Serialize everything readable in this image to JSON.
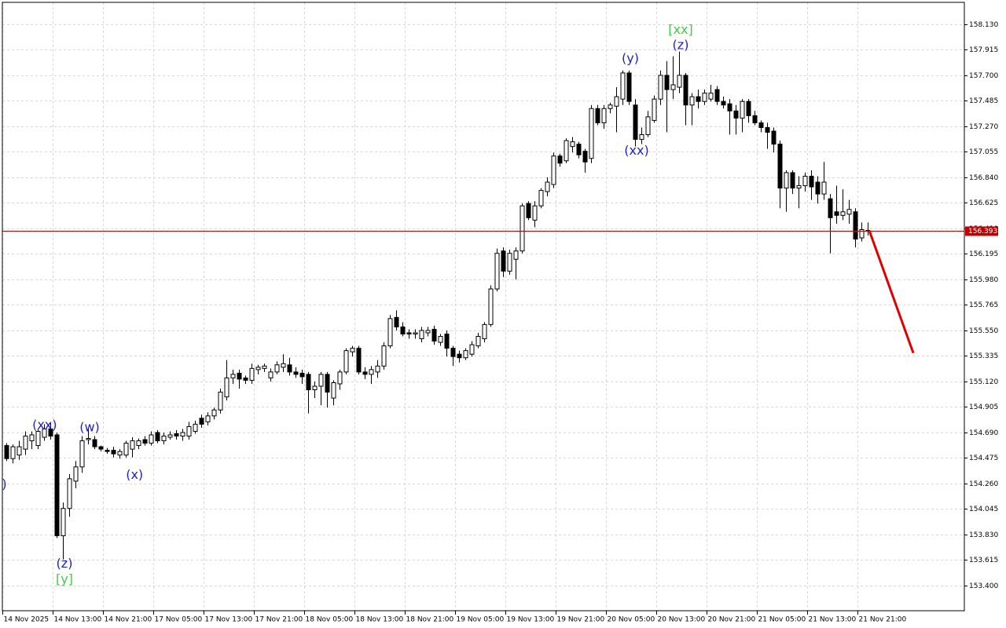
{
  "chart_data": {
    "type": "candlestick",
    "series": {
      "open": [
        154.58,
        154.47,
        154.5,
        154.55,
        154.62,
        154.58,
        154.65,
        154.72,
        154.67,
        153.82,
        154.05,
        154.28,
        154.4,
        154.63,
        154.63,
        154.57,
        154.54,
        154.54,
        154.5,
        154.5,
        154.55,
        154.58,
        154.63,
        154.6,
        154.69,
        154.62,
        154.65,
        154.68,
        154.66,
        154.66,
        154.7,
        154.81,
        154.78,
        154.83,
        154.88,
        154.99,
        155.15,
        155.19,
        155.15,
        155.13,
        155.22,
        155.23,
        155.15,
        155.2,
        155.24,
        155.26,
        155.2,
        155.19,
        155.18,
        155.05,
        155.08,
        155.18,
        154.98,
        155.1,
        155.2,
        155.37,
        155.4,
        155.2,
        155.18,
        155.2,
        155.25,
        155.42,
        155.66,
        155.58,
        155.53,
        155.52,
        155.48,
        155.53,
        155.56,
        155.45,
        155.52,
        155.4,
        155.35,
        155.32,
        155.35,
        155.42,
        155.48,
        155.6,
        155.9,
        156.22,
        156.05,
        156.15,
        156.22,
        156.62,
        156.48,
        156.6,
        156.72,
        156.78,
        157.02,
        156.98,
        157.1,
        157.12,
        157.06,
        157.0,
        157.42,
        157.3,
        157.42,
        157.44,
        157.5,
        157.72,
        157.45,
        157.16,
        157.2,
        157.32,
        157.5,
        157.7,
        157.58,
        157.6,
        157.7,
        157.45,
        157.52,
        157.48,
        157.5,
        157.58,
        157.48,
        157.46,
        157.4,
        157.34,
        157.48,
        157.36,
        157.3,
        157.26,
        157.23,
        157.12,
        156.75,
        156.88,
        156.75,
        156.77,
        156.85,
        156.8,
        156.7,
        156.66,
        156.55,
        156.52,
        156.53,
        156.55,
        156.33,
        156.39
      ],
      "high": [
        154.6,
        154.59,
        154.62,
        154.7,
        154.7,
        154.72,
        154.76,
        154.77,
        154.69,
        154.1,
        154.34,
        154.45,
        154.66,
        154.72,
        154.66,
        154.58,
        154.56,
        154.57,
        154.55,
        154.62,
        154.65,
        154.64,
        154.66,
        154.7,
        154.71,
        154.69,
        154.7,
        154.71,
        154.72,
        154.78,
        154.79,
        154.84,
        154.86,
        154.9,
        155.06,
        155.3,
        155.22,
        155.22,
        155.17,
        155.27,
        155.26,
        155.27,
        155.23,
        155.29,
        155.35,
        155.32,
        155.24,
        155.22,
        155.2,
        155.12,
        155.2,
        155.2,
        155.13,
        155.22,
        155.4,
        155.42,
        155.42,
        155.24,
        155.25,
        155.3,
        155.45,
        155.68,
        155.72,
        155.62,
        155.56,
        155.56,
        155.58,
        155.58,
        155.59,
        155.52,
        155.55,
        155.42,
        155.38,
        155.4,
        155.46,
        155.53,
        155.62,
        155.93,
        156.24,
        156.25,
        156.23,
        156.25,
        156.62,
        156.64,
        156.64,
        156.75,
        156.84,
        157.05,
        157.04,
        157.17,
        157.18,
        157.14,
        157.08,
        157.45,
        157.45,
        157.45,
        157.47,
        157.6,
        157.74,
        157.74,
        157.5,
        157.26,
        157.4,
        157.53,
        157.74,
        157.82,
        157.86,
        157.9,
        157.72,
        157.55,
        157.58,
        157.58,
        157.62,
        157.61,
        157.52,
        157.5,
        157.45,
        157.5,
        157.5,
        157.4,
        157.32,
        157.3,
        157.26,
        157.15,
        156.9,
        156.9,
        156.85,
        156.88,
        156.9,
        156.85,
        156.97,
        156.7,
        156.77,
        156.74,
        156.65,
        156.58,
        156.46,
        156.46
      ],
      "low": [
        154.45,
        154.43,
        154.46,
        154.5,
        154.55,
        154.55,
        154.62,
        154.63,
        153.8,
        153.62,
        153.98,
        154.22,
        154.35,
        154.59,
        154.55,
        154.53,
        154.51,
        154.48,
        154.47,
        154.48,
        154.48,
        154.55,
        154.58,
        154.58,
        154.6,
        154.59,
        154.63,
        154.63,
        154.62,
        154.63,
        154.68,
        154.73,
        154.75,
        154.8,
        154.85,
        154.96,
        155.1,
        155.06,
        155.1,
        155.1,
        155.18,
        155.2,
        155.12,
        155.18,
        155.2,
        155.17,
        155.15,
        155.1,
        154.85,
        154.98,
        154.92,
        154.9,
        154.92,
        155.05,
        155.18,
        155.33,
        155.18,
        155.14,
        155.1,
        155.15,
        155.22,
        155.4,
        155.55,
        155.5,
        155.48,
        155.48,
        155.45,
        155.5,
        155.43,
        155.42,
        155.33,
        155.25,
        155.28,
        155.3,
        155.33,
        155.4,
        155.45,
        155.58,
        155.88,
        156.0,
        156.02,
        155.98,
        156.2,
        156.48,
        156.42,
        156.58,
        156.68,
        156.75,
        156.93,
        156.96,
        157.05,
        157.0,
        156.88,
        156.96,
        157.28,
        157.25,
        157.38,
        157.22,
        157.45,
        157.45,
        157.1,
        157.12,
        157.18,
        157.3,
        157.45,
        157.22,
        157.5,
        157.55,
        157.28,
        157.28,
        157.42,
        157.45,
        157.48,
        157.45,
        157.42,
        157.2,
        157.2,
        157.22,
        157.3,
        157.28,
        157.22,
        157.08,
        157.05,
        156.58,
        156.55,
        156.7,
        156.58,
        156.72,
        156.65,
        156.62,
        156.65,
        156.2,
        156.45,
        156.48,
        156.45,
        156.25,
        156.3,
        156.35
      ],
      "close": [
        154.47,
        154.57,
        154.57,
        154.66,
        154.67,
        154.7,
        154.72,
        154.66,
        153.82,
        154.05,
        154.3,
        154.4,
        154.62,
        154.64,
        154.57,
        154.55,
        154.53,
        154.51,
        154.53,
        154.6,
        154.62,
        154.62,
        154.6,
        154.67,
        154.62,
        154.66,
        154.67,
        154.66,
        154.69,
        154.74,
        154.76,
        154.76,
        154.83,
        154.88,
        155.03,
        155.15,
        155.18,
        155.14,
        155.13,
        155.23,
        155.24,
        155.25,
        155.2,
        155.26,
        155.27,
        155.2,
        155.18,
        155.16,
        155.05,
        155.08,
        155.18,
        155.03,
        155.11,
        155.2,
        155.38,
        155.4,
        155.2,
        155.18,
        155.22,
        155.25,
        155.42,
        155.65,
        155.58,
        155.52,
        155.52,
        155.53,
        155.55,
        155.55,
        155.46,
        155.5,
        155.4,
        155.33,
        155.32,
        155.38,
        155.43,
        155.5,
        155.6,
        155.9,
        156.2,
        156.05,
        156.2,
        156.22,
        156.6,
        156.5,
        156.6,
        156.73,
        156.8,
        157.02,
        156.96,
        157.15,
        157.14,
        157.03,
        156.97,
        157.42,
        157.3,
        157.42,
        157.45,
        157.52,
        157.72,
        157.48,
        157.16,
        157.2,
        157.35,
        157.5,
        157.7,
        157.58,
        157.62,
        157.7,
        157.45,
        157.52,
        157.48,
        157.55,
        157.55,
        157.48,
        157.45,
        157.4,
        157.34,
        157.48,
        157.36,
        157.3,
        157.26,
        157.22,
        157.12,
        156.75,
        156.88,
        156.75,
        156.77,
        156.85,
        156.76,
        156.7,
        156.8,
        156.5,
        156.52,
        156.55,
        156.57,
        156.32,
        156.4,
        156.393
      ]
    },
    "up_color": "#ffffff",
    "down_color": "#000000",
    "edge_color": "#000000",
    "xlim": [
      -0.625,
      152.375
    ],
    "xticks": [
      {
        "value": 0,
        "label": "14 Nov 2025"
      },
      {
        "value": 8,
        "label": "14 Nov 13:00"
      },
      {
        "value": 16,
        "label": "14 Nov 21:00"
      },
      {
        "value": 24,
        "label": "17 Nov 05:00"
      },
      {
        "value": 32,
        "label": "17 Nov 13:00"
      },
      {
        "value": 40,
        "label": "17 Nov 21:00"
      },
      {
        "value": 48,
        "label": "18 Nov 05:00"
      },
      {
        "value": 56,
        "label": "18 Nov 13:00"
      },
      {
        "value": 64,
        "label": "18 Nov 21:00"
      },
      {
        "value": 72,
        "label": "19 Nov 05:00"
      },
      {
        "value": 80,
        "label": "19 Nov 13:00"
      },
      {
        "value": 88,
        "label": "19 Nov 21:00"
      },
      {
        "value": 96,
        "label": "20 Nov 05:00"
      },
      {
        "value": 104,
        "label": "20 Nov 13:00"
      },
      {
        "value": 112,
        "label": "20 Nov 21:00"
      },
      {
        "value": 120,
        "label": "21 Nov 05:00"
      },
      {
        "value": 128,
        "label": "21 Nov 13:00"
      },
      {
        "value": 136,
        "label": "21 Nov 21:00"
      }
    ],
    "ylim": [
      153.188,
      158.315
    ],
    "yticks": [
      {
        "value": 158.13,
        "label": "158.130"
      },
      157.915,
      {
        "value": 157.7,
        "label": "157.700"
      },
      157.485,
      {
        "value": 157.27,
        "label": "157.270"
      },
      157.055,
      {
        "value": 156.84,
        "label": "156.840"
      },
      156.625,
      {
        "value": 156.41,
        "label": "156.410"
      },
      156.195,
      {
        "value": 155.98,
        "label": "155.980"
      },
      155.765,
      {
        "value": 155.55,
        "label": "155.550"
      },
      155.335,
      {
        "value": 155.12,
        "label": "155.120"
      },
      154.905,
      {
        "value": 154.69,
        "label": "154.690"
      },
      154.475,
      {
        "value": 154.26,
        "label": "154.260"
      },
      154.045,
      {
        "value": 153.83,
        "label": "153.830"
      },
      153.615,
      {
        "value": 153.4,
        "label": "153.400"
      }
    ],
    "grid": true,
    "current_price": 156.393,
    "current_price_color": "#c00000",
    "forecast": {
      "x": [
        137.25,
        144.25
      ],
      "y": [
        156.393,
        155.36
      ],
      "color": "#e00000"
    },
    "annotations": [
      {
        "text": "(y)",
        "x": -1.3,
        "y": 154.25,
        "color": "#2020d0"
      },
      {
        "text": "(xx)",
        "x": 6.1,
        "y": 154.75,
        "color": "#2020d0"
      },
      {
        "text": "(w)",
        "x": 13.25,
        "y": 154.73,
        "color": "#2020d0"
      },
      {
        "text": "(x)",
        "x": 20.4,
        "y": 154.33,
        "color": "#2020d0"
      },
      {
        "text": "(z)",
        "x": 9.25,
        "y": 153.58,
        "color": "#2020d0"
      },
      {
        "text": "[y]",
        "x": 9.25,
        "y": 153.45,
        "color": "#44cc44"
      },
      {
        "text": "(y)",
        "x": 99.25,
        "y": 157.84,
        "color": "#2020d0"
      },
      {
        "text": "(xx)",
        "x": 100.25,
        "y": 157.06,
        "color": "#2020d0"
      },
      {
        "text": "(z)",
        "x": 107.25,
        "y": 157.95,
        "color": "#2020d0"
      },
      {
        "text": "[xx]",
        "x": 107.25,
        "y": 158.08,
        "color": "#44cc44"
      }
    ]
  }
}
